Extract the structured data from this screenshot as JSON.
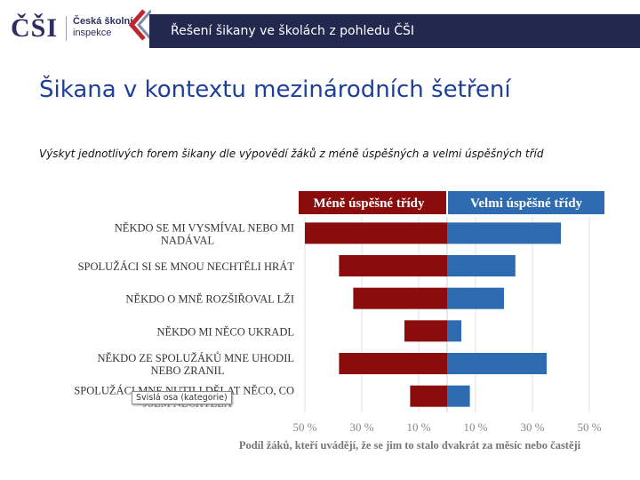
{
  "header": {
    "logo_mark": "ČŠI",
    "logo_name_1": "Česká školní",
    "logo_name_2": "inspekce",
    "banner_title": "Řešení šikany ve školách z pohledu ČŠI",
    "colors": {
      "banner": "#23284f",
      "chevron": "#c0272d",
      "logo": "#2d2f63"
    }
  },
  "page_title": "Šikana v kontextu mezinárodních šetření",
  "subtitle": "Výskyt jednotlivých forem šikany dle výpovědí žáků z méně úspěšných a velmi úspěšných tříd",
  "tooltip": "Svislá osa (kategorie)",
  "chart_data": {
    "type": "bar",
    "orientation": "horizontal-diverging",
    "legend": {
      "left": "Méně úspěšné třídy",
      "right": "Velmi úspěšné třídy",
      "placement": "top"
    },
    "categories": [
      {
        "line1": "NĚKDO SE MI VYSMÍVAL NEBO MI",
        "line2": "NADÁVAL"
      },
      {
        "line1": "SPOLUŽÁCI SI SE MNOU NECHTĚLI HRÁT",
        "line2": ""
      },
      {
        "line1": "NĚKDO O MNĚ ROZŠIŘOVAL LŽI",
        "line2": ""
      },
      {
        "line1": "NĚKDO MI NĚCO UKRADL",
        "line2": ""
      },
      {
        "line1": "NĚKDO ZE SPOLUŽÁKŮ MNE UHODIL",
        "line2": "NEBO ZRANIL"
      },
      {
        "line1": "SPOLUŽÁCI MNE NUTILI DĚLAT NĚCO, CO",
        "line2": "JSEM NECHTĚLA"
      }
    ],
    "series": [
      {
        "name": "Méně úspěšné třídy",
        "color": "#8b0c0c",
        "values": [
          50,
          38,
          33,
          15,
          38,
          13
        ]
      },
      {
        "name": "Velmi úspěšné třídy",
        "color": "#2e6bb0",
        "values": [
          40,
          24,
          20,
          5,
          35,
          8
        ]
      }
    ],
    "xlim": [
      -50,
      50
    ],
    "ticks": [
      -50,
      -30,
      -10,
      10,
      30,
      50
    ],
    "tick_labels": [
      "50 %",
      "30 %",
      "10 %",
      "10 %",
      "30 %",
      "50 %"
    ],
    "xlabel": "Podíl žáků, kteří uvádějí, že se jim to stalo dvakrát za měsíc nebo častěji",
    "grid": true
  }
}
